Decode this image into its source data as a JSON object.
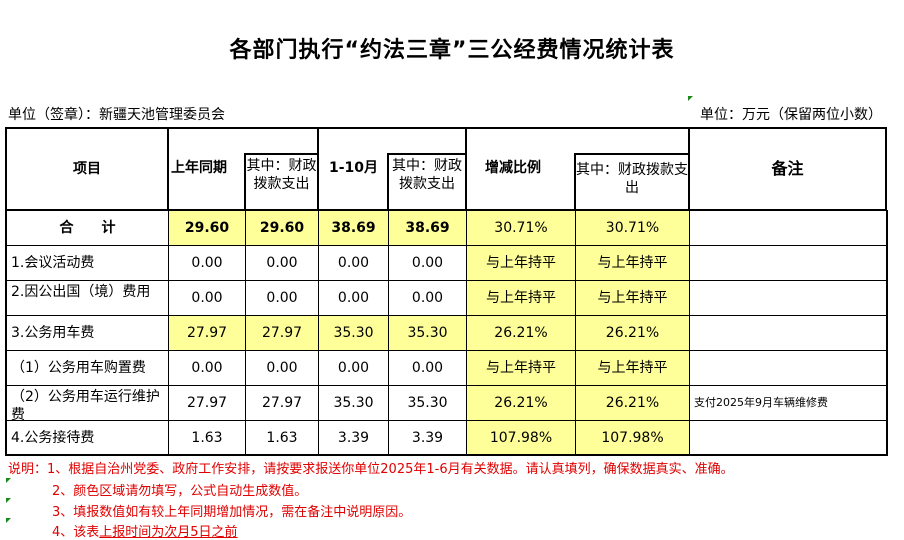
{
  "title": "各部门执行“约法三章”三公经费情况统计表",
  "unit_left": "单位（签章）：新疆天池管理委员会",
  "unit_right": "单位：万元（保留两位小数）",
  "headers": {
    "item": "项目",
    "last_year": "上年同期",
    "last_year_fiscal": "其中：财政拨款支出",
    "current": "1-10月",
    "current_fiscal": "其中：财政拨款支出",
    "change": "增减比例",
    "change_fiscal": "其中：财政拨款支出",
    "remark": "备注"
  },
  "rows": [
    {
      "item": "合　　计",
      "last_year": "29.60",
      "last_year_fiscal": "29.60",
      "current": "38.69",
      "current_fiscal": "38.69",
      "change": "30.71%",
      "change_fiscal": "30.71%",
      "remark": ""
    },
    {
      "item": "1.会议活动费",
      "last_year": "0.00",
      "last_year_fiscal": "0.00",
      "current": "0.00",
      "current_fiscal": "0.00",
      "change": "与上年持平",
      "change_fiscal": "与上年持平",
      "remark": ""
    },
    {
      "item": "2.因公出国（境）费用",
      "last_year": "0.00",
      "last_year_fiscal": "0.00",
      "current": "0.00",
      "current_fiscal": "0.00",
      "change": "与上年持平",
      "change_fiscal": "与上年持平",
      "remark": ""
    },
    {
      "item": "3.公务用车费",
      "last_year": "27.97",
      "last_year_fiscal": "27.97",
      "current": "35.30",
      "current_fiscal": "35.30",
      "change": "26.21%",
      "change_fiscal": "26.21%",
      "remark": ""
    },
    {
      "item": "（1）公务用车购置费",
      "last_year": "0.00",
      "last_year_fiscal": "0.00",
      "current": "0.00",
      "current_fiscal": "0.00",
      "change": "与上年持平",
      "change_fiscal": "与上年持平",
      "remark": ""
    },
    {
      "item": "（2）公务用车运行维护费",
      "last_year": "27.97",
      "last_year_fiscal": "27.97",
      "current": "35.30",
      "current_fiscal": "35.30",
      "change": "26.21%",
      "change_fiscal": "26.21%",
      "remark": "支付2025年9月车辆维修费"
    },
    {
      "item": "4.公务接待费",
      "last_year": "1.63",
      "last_year_fiscal": "1.63",
      "current": "3.39",
      "current_fiscal": "3.39",
      "change": "107.98%",
      "change_fiscal": "107.98%",
      "remark": ""
    }
  ],
  "notes": {
    "n1": "说明：1、根据自治州党委、政府工作安排，请按要求报送你单位2025年1-6月有关数据。请认真填列，确保数据真实、准确。",
    "n2": "2、颜色区域请勿填写，公式自动生成数值。",
    "n3": "3、填报数值如有较上年同期增加情况，需在备注中说明原因。",
    "n4a": "4、该表",
    "n4b": "上报时间为次月5日之前"
  },
  "colors": {
    "highlight": "#ffff99",
    "note_text": "#e00000"
  }
}
